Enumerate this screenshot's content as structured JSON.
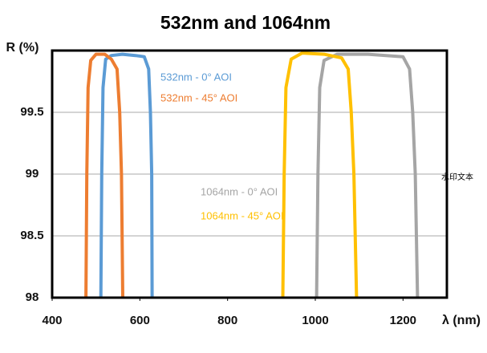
{
  "chart_data": {
    "type": "line",
    "title": "532nm and 1064nm",
    "y_label": "R (%)",
    "x_label": "λ (nm)",
    "watermark": "水印文本",
    "xlim": [
      400,
      1300
    ],
    "xticks": [
      400,
      600,
      800,
      1000,
      1200
    ],
    "ylim": [
      98,
      100
    ],
    "yticks": [
      98,
      98.5,
      99,
      99.5
    ],
    "grid": true,
    "series": [
      {
        "name": "532nm - 0° AOI",
        "color": "#5b9bd5",
        "x": [
          511,
          513,
          516,
          522,
          535,
          560,
          590,
          610,
          620,
          624,
          627,
          628
        ],
        "values": [
          98,
          99,
          99.7,
          99.93,
          99.96,
          99.97,
          99.96,
          99.95,
          99.85,
          99.5,
          99,
          98
        ]
      },
      {
        "name": "532nm - 45° AOI",
        "color": "#ed7d31",
        "x": [
          477,
          479,
          482,
          488,
          500,
          520,
          535,
          548,
          554,
          558,
          561
        ],
        "values": [
          98,
          99,
          99.7,
          99.92,
          99.97,
          99.97,
          99.93,
          99.85,
          99.5,
          99,
          98
        ]
      },
      {
        "name": "1064nm - 0° AOI",
        "color": "#a5a5a5",
        "x": [
          1003,
          1006,
          1010,
          1020,
          1050,
          1120,
          1200,
          1215,
          1222,
          1228,
          1233
        ],
        "values": [
          98,
          99,
          99.7,
          99.92,
          99.97,
          99.97,
          99.95,
          99.85,
          99.5,
          99,
          98
        ]
      },
      {
        "name": "1064nm - 45° AOI",
        "color": "#ffc000",
        "x": [
          926,
          929,
          933,
          945,
          970,
          1020,
          1060,
          1075,
          1082,
          1088,
          1094
        ],
        "values": [
          98,
          99,
          99.7,
          99.93,
          99.98,
          99.97,
          99.94,
          99.85,
          99.5,
          99,
          98
        ]
      }
    ]
  }
}
